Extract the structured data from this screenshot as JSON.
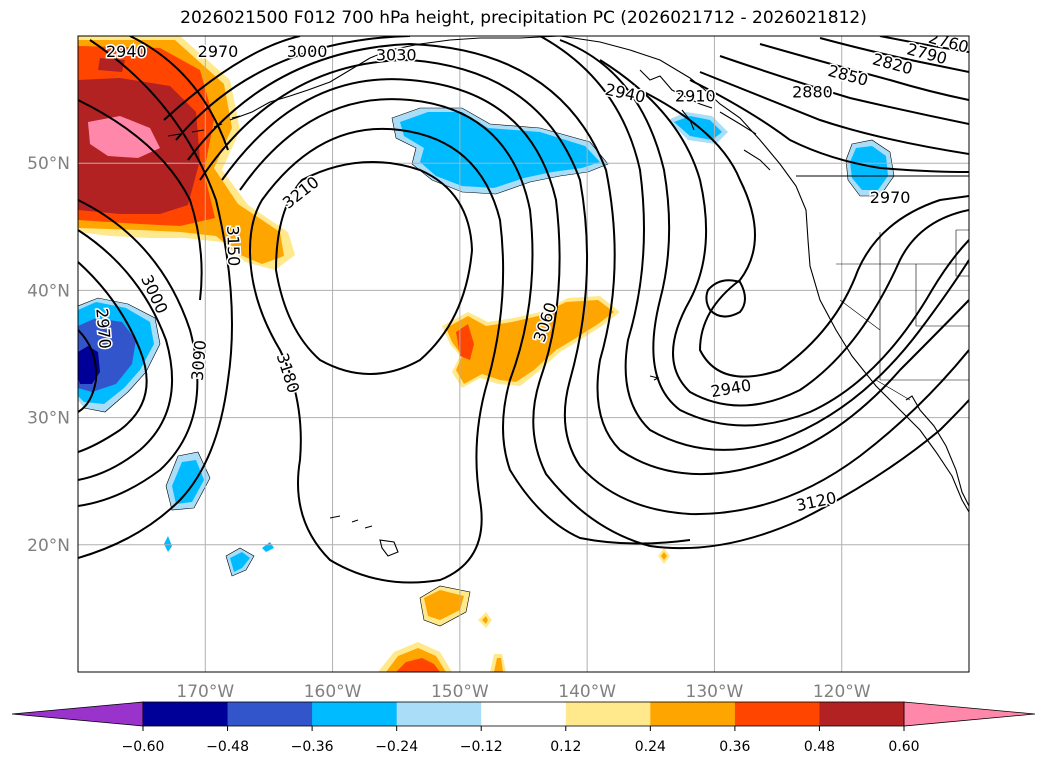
{
  "title": "2026021500 F012 700 hPa height, precipitation PC (2026021712 - 2026021812)",
  "map": {
    "lon_range": [
      -180,
      -110
    ],
    "lat_range": [
      10,
      60
    ],
    "lat_ticks": [
      {
        "value": 20,
        "label": "20°N"
      },
      {
        "value": 30,
        "label": "30°N"
      },
      {
        "value": 40,
        "label": "40°N"
      },
      {
        "value": 50,
        "label": "50°N"
      }
    ],
    "lon_ticks": [
      {
        "value": -170,
        "label": "170°W"
      },
      {
        "value": -160,
        "label": "160°W"
      },
      {
        "value": -150,
        "label": "150°W"
      },
      {
        "value": -140,
        "label": "140°W"
      },
      {
        "value": -130,
        "label": "130°W"
      },
      {
        "value": -120,
        "label": "120°W"
      }
    ],
    "grid": true,
    "tick_color": "#808080"
  },
  "contour_labels": [
    {
      "text": "2940",
      "lon": -176.2,
      "lat": 58.8,
      "rot": 0
    },
    {
      "text": "2970",
      "lon": -169.0,
      "lat": 58.8,
      "rot": 0
    },
    {
      "text": "3000",
      "lon": -162.0,
      "lat": 58.8,
      "rot": 0
    },
    {
      "text": "3030",
      "lon": -155.0,
      "lat": 58.5,
      "rot": 0
    },
    {
      "text": "2940",
      "lon": -137.0,
      "lat": 55.5,
      "rot": 12
    },
    {
      "text": "2910",
      "lon": -131.5,
      "lat": 55.3,
      "rot": 0
    },
    {
      "text": "2880",
      "lon": -122.3,
      "lat": 55.6,
      "rot": 0
    },
    {
      "text": "2850",
      "lon": -119.5,
      "lat": 56.9,
      "rot": 15
    },
    {
      "text": "2820",
      "lon": -116.0,
      "lat": 57.8,
      "rot": 15
    },
    {
      "text": "2790",
      "lon": -113.3,
      "lat": 58.6,
      "rot": 15
    },
    {
      "text": "2760",
      "lon": -111.6,
      "lat": 59.5,
      "rot": 15
    },
    {
      "text": "2970",
      "lon": -116.2,
      "lat": 47.3,
      "rot": 0
    },
    {
      "text": "3210",
      "lon": -162.5,
      "lat": 47.7,
      "rot": -38
    },
    {
      "text": "3150",
      "lon": -167.8,
      "lat": 43.5,
      "rot": 88
    },
    {
      "text": "3000",
      "lon": -174.0,
      "lat": 39.7,
      "rot": 65
    },
    {
      "text": "2970",
      "lon": -178.0,
      "lat": 37.0,
      "rot": 85
    },
    {
      "text": "3090",
      "lon": -170.5,
      "lat": 34.5,
      "rot": -85
    },
    {
      "text": "3180",
      "lon": -163.5,
      "lat": 33.5,
      "rot": 72
    },
    {
      "text": "3060",
      "lon": -143.3,
      "lat": 37.5,
      "rot": -72
    },
    {
      "text": "2940",
      "lon": -128.7,
      "lat": 32.3,
      "rot": -10
    },
    {
      "text": "3120",
      "lon": -122.0,
      "lat": 23.4,
      "rot": -12
    }
  ],
  "colorbar": {
    "ticks": [
      "−0.60",
      "−0.48",
      "−0.36",
      "−0.24",
      "−0.12",
      "0.12",
      "0.24",
      "0.36",
      "0.48",
      "0.60"
    ],
    "colors": {
      "under": "#9933cc",
      "c_-0.60": "#000099",
      "c_-0.48": "#3355cc",
      "c_-0.36": "#00bbff",
      "c_-0.24": "#aaddf8",
      "c_-0.12": "#ffffff",
      "c_0.12": "#ffe98c",
      "c_0.24": "#ffa500",
      "c_0.36": "#ff4500",
      "c_0.48": "#b22222",
      "over": "#ff88aa"
    }
  }
}
